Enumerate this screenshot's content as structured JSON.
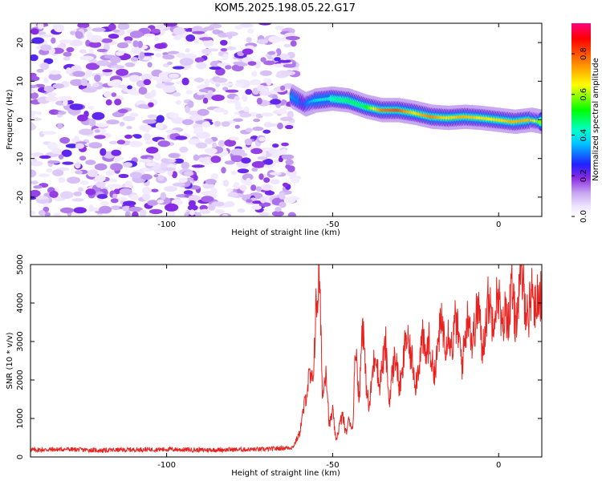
{
  "title": "KOM5.2025.198.05.22.G17",
  "chart_data": [
    {
      "type": "heatmap",
      "xlabel": "Height of straight line (km)",
      "ylabel": "Frequency (Hz)",
      "xlim": [
        -141,
        13
      ],
      "ylim": [
        -25,
        25
      ],
      "xticks": [
        -100,
        -50,
        0
      ],
      "yticks": [
        -20,
        -10,
        0,
        10,
        20
      ],
      "colorbar": {
        "label": "Normalized spectral amplitude",
        "range": [
          0.0,
          0.95
        ],
        "ticks": [
          0.0,
          0.2,
          0.4,
          0.6,
          0.8
        ],
        "tick_labels": [
          "0.0",
          "0.2",
          "0.4",
          "0.6",
          "0.8"
        ],
        "colors": [
          "#ffffff",
          "#c8a8f0",
          "#8a2be2",
          "#0000ff",
          "#00ffff",
          "#00ff00",
          "#ffff00",
          "#ff8000",
          "#ff0000",
          "#ff0080"
        ]
      },
      "noise_region": {
        "x_range": [
          -141,
          -61
        ],
        "y_range": [
          -25,
          25
        ],
        "level": "0.05-0.2"
      },
      "signal_ridge": [
        {
          "x": -62,
          "y": 6,
          "amp": 0.35
        },
        {
          "x": -58,
          "y": 4,
          "amp": 0.3
        },
        {
          "x": -55,
          "y": 5,
          "amp": 0.4
        },
        {
          "x": -50,
          "y": 5.5,
          "amp": 0.45
        },
        {
          "x": -45,
          "y": 5,
          "amp": 0.5
        },
        {
          "x": -40,
          "y": 3.5,
          "amp": 0.5
        },
        {
          "x": -35,
          "y": 2.5,
          "amp": 0.8
        },
        {
          "x": -30,
          "y": 2.5,
          "amp": 0.85
        },
        {
          "x": -25,
          "y": 1.8,
          "amp": 0.7
        },
        {
          "x": -20,
          "y": 0.8,
          "amp": 0.8
        },
        {
          "x": -15,
          "y": 0.5,
          "amp": 0.7
        },
        {
          "x": -10,
          "y": 0.8,
          "amp": 0.75
        },
        {
          "x": -5,
          "y": 0.5,
          "amp": 0.7
        },
        {
          "x": 0,
          "y": 0,
          "amp": 0.7
        },
        {
          "x": 5,
          "y": -0.5,
          "amp": 0.75
        },
        {
          "x": 10,
          "y": 0,
          "amp": 0.75
        },
        {
          "x": 13,
          "y": -0.5,
          "amp": 0.6
        }
      ]
    },
    {
      "type": "line",
      "xlabel": "Height of straight line (km)",
      "ylabel": "SNR (10 * v/v)",
      "xlim": [
        -141,
        13
      ],
      "ylim": [
        0,
        5000
      ],
      "xticks": [
        -100,
        -50,
        0
      ],
      "yticks": [
        0,
        1000,
        2000,
        3000,
        4000,
        5000
      ],
      "color": "#e8221e",
      "x": [
        -141,
        -130,
        -120,
        -110,
        -100,
        -90,
        -80,
        -70,
        -62,
        -60,
        -58,
        -57,
        -56,
        -55,
        -54,
        -53,
        -52,
        -51,
        -50,
        -49,
        -48,
        -47,
        -46,
        -45,
        -44,
        -43,
        -42,
        -41,
        -40,
        -39,
        -38,
        -37,
        -36,
        -35,
        -34,
        -33,
        -32,
        -31,
        -30,
        -29,
        -28,
        -27,
        -26,
        -25,
        -24,
        -23,
        -22,
        -21,
        -20,
        -19,
        -18,
        -17,
        -16,
        -15,
        -14,
        -13,
        -12,
        -11,
        -10,
        -9,
        -8,
        -7,
        -6,
        -5,
        -4,
        -3,
        -2,
        -1,
        0,
        1,
        2,
        3,
        4,
        5,
        6,
        7,
        8,
        9,
        10,
        11,
        12,
        13
      ],
      "values": [
        180,
        200,
        170,
        190,
        200,
        180,
        190,
        200,
        250,
        600,
        1600,
        2100,
        1900,
        3800,
        4700,
        1500,
        2400,
        800,
        1200,
        400,
        800,
        1100,
        600,
        1000,
        700,
        3000,
        1400,
        3700,
        2000,
        1200,
        2200,
        2800,
        1800,
        2400,
        2900,
        1400,
        2200,
        2700,
        1800,
        2100,
        3200,
        2800,
        2500,
        1900,
        2400,
        3100,
        2600,
        3000,
        2400,
        2200,
        3200,
        3500,
        3000,
        3300,
        2800,
        3600,
        3100,
        2400,
        3200,
        3800,
        2900,
        3500,
        4000,
        2700,
        3400,
        4200,
        3600,
        3900,
        4300,
        3200,
        3800,
        3600,
        4400,
        3500,
        4100,
        4700,
        4000,
        3600,
        4500,
        3800,
        4300,
        4200
      ]
    }
  ]
}
